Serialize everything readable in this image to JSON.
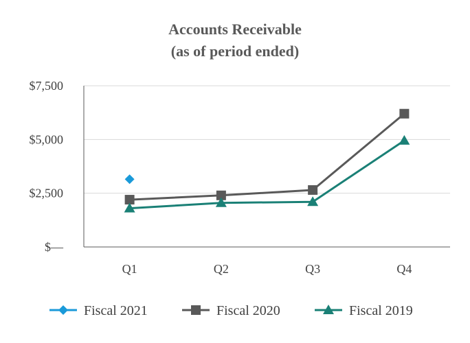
{
  "chart_data": {
    "type": "line",
    "title": "Accounts Receivable",
    "subtitle": "(as of period ended)",
    "categories": [
      "Q1",
      "Q2",
      "Q3",
      "Q4"
    ],
    "ylim": [
      0,
      7500
    ],
    "yticks": [
      0,
      2500,
      5000,
      7500
    ],
    "ytick_labels": [
      "$—",
      "$2,500",
      "$5,000",
      "$7,500"
    ],
    "grid": true,
    "legend_position": "bottom",
    "series": [
      {
        "name": "Fiscal 2021",
        "values": [
          3150,
          null,
          null,
          null
        ],
        "color": "#1a9ad9",
        "marker": "diamond"
      },
      {
        "name": "Fiscal 2020",
        "values": [
          2200,
          2400,
          2650,
          6200
        ],
        "color": "#595959",
        "marker": "square"
      },
      {
        "name": "Fiscal 2019",
        "values": [
          1800,
          2050,
          2100,
          4950
        ],
        "color": "#1a8076",
        "marker": "triangle"
      }
    ]
  }
}
